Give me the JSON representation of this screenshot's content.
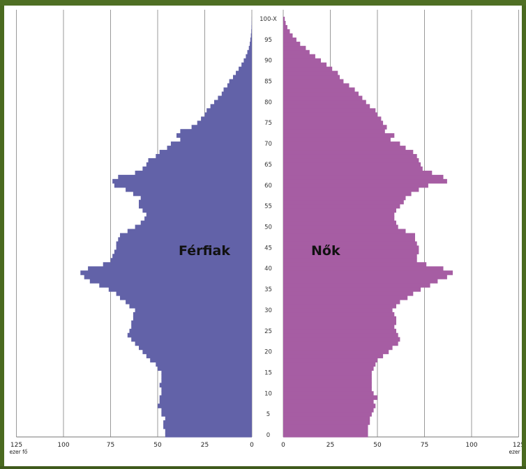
{
  "chart_data": {
    "type": "bar",
    "orientation": "horizontal-pyramid",
    "age_axis_ticks": [
      "0",
      "5",
      "10",
      "15",
      "20",
      "25",
      "30",
      "35",
      "40",
      "45",
      "50",
      "55",
      "60",
      "65",
      "70",
      "75",
      "80",
      "85",
      "90",
      "95",
      "100-X"
    ],
    "x_ticks": {
      "left": [
        "125",
        "100",
        "75",
        "50",
        "25",
        "0"
      ],
      "right": [
        "0",
        "25",
        "50",
        "75",
        "100",
        "125"
      ]
    },
    "x_unit_label": "ezer fő",
    "xlim": [
      0,
      125
    ],
    "grid": true,
    "series": [
      {
        "name": "Férfiak",
        "side": "left",
        "color": "#6262a8",
        "values": [
          46,
          46,
          47,
          47,
          46,
          48,
          48,
          50,
          49,
          49,
          48,
          48,
          49,
          48,
          48,
          48,
          50,
          51,
          54,
          56,
          58,
          60,
          62,
          64,
          66,
          65,
          64,
          64,
          63,
          63,
          62,
          65,
          67,
          70,
          72,
          76,
          81,
          86,
          89,
          91,
          87,
          79,
          75,
          74,
          73,
          72,
          72,
          71,
          70,
          66,
          62,
          59,
          57,
          56,
          58,
          60,
          60,
          59,
          63,
          67,
          73,
          74,
          71,
          62,
          58,
          56,
          55,
          51,
          49,
          45,
          43,
          38,
          40,
          38,
          32,
          29,
          27,
          25,
          24,
          22,
          20,
          18,
          16,
          15,
          13,
          12,
          10,
          8.5,
          7,
          5.5,
          4.3,
          3.2,
          2.4,
          1.6,
          1.1,
          0.8,
          0.5,
          0.3,
          0.2,
          0.1,
          0.05
        ]
      },
      {
        "name": "Nők",
        "side": "right",
        "color": "#a65da3",
        "values": [
          45,
          45,
          45,
          46,
          46,
          47,
          48,
          49,
          48,
          50,
          48,
          47,
          47,
          47,
          47,
          47,
          48,
          49,
          50,
          53,
          56,
          58,
          61,
          62,
          61,
          60,
          59,
          60,
          60,
          59,
          58,
          60,
          62,
          66,
          69,
          73,
          78,
          82,
          87,
          90,
          85,
          76,
          71,
          71,
          72,
          72,
          71,
          70,
          70,
          65,
          61,
          60,
          59,
          59,
          60,
          62,
          64,
          65,
          68,
          72,
          77,
          87,
          85,
          79,
          74,
          73,
          72,
          71,
          69,
          65,
          62,
          57,
          59,
          54,
          55,
          53,
          52,
          50,
          49,
          46,
          44,
          42,
          40,
          38,
          35,
          32,
          30,
          29,
          26,
          23,
          20,
          17,
          14,
          12,
          9,
          7,
          5,
          3.5,
          2.2,
          1.3,
          0.8
        ]
      }
    ]
  }
}
